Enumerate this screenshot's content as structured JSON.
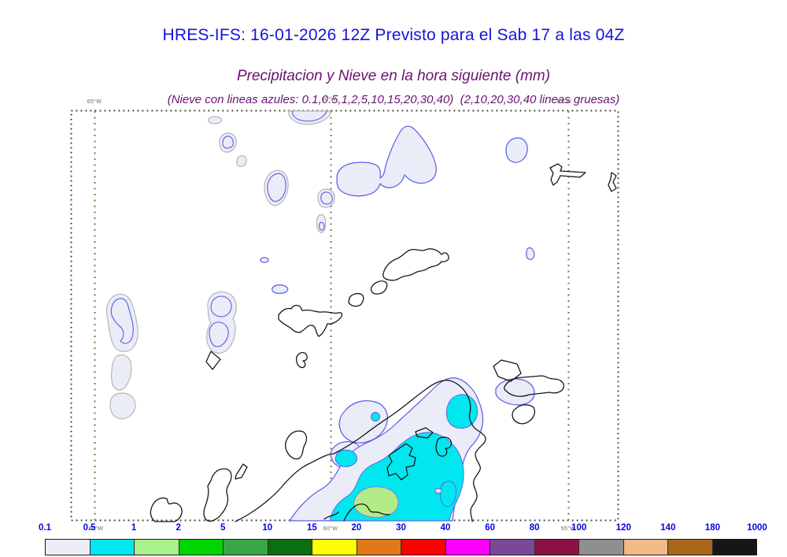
{
  "header": {
    "title": "HRES-IFS: 16-01-2026 12Z Previsto para el Sab 17 a las 04Z",
    "subtitle": "Precipitacion y Nieve en la hora siguiente (mm)",
    "legend_note": "(Nieve con lineas azules: 0.1,0.5,1,2,5,10,15,20,30,40)  (2,10,20,30,40 lineas gruesas)"
  },
  "map": {
    "meridian_labels_top": [
      "65°W",
      "60°W",
      "55°W"
    ],
    "meridian_labels_bottom": [
      "65°W",
      "60°W",
      "55°W"
    ]
  },
  "colorbar": {
    "tick_labels": [
      "0.1",
      "0.5",
      "1",
      "2",
      "5",
      "10",
      "15",
      "20",
      "30",
      "40",
      "60",
      "80",
      "100",
      "120",
      "140",
      "180",
      "1000"
    ],
    "cell_colors": [
      "#ecedf6",
      "#00e7f0",
      "#aaf08c",
      "#00d600",
      "#3aa747",
      "#0d6e11",
      "#feff00",
      "#e1791b",
      "#fe0000",
      "#fe00fe",
      "#7b4898",
      "#8c1144",
      "#8f8f8f",
      "#f0ba89",
      "#a9671b",
      "#161616"
    ]
  },
  "colors": {
    "title_blue": "#1414dd",
    "subtitle_purple": "#6a1272",
    "tick_label_blue": "#0404dd",
    "snow_contour_blue": "#5a5ae6",
    "precip_contour_gray": "#b6b6b6",
    "coastline_black": "#161616",
    "graticule_brown": "#8a7348",
    "fill_light": "#eaecf7",
    "fill_cyan": "#00e7f0",
    "fill_green": "#b2ec88"
  }
}
